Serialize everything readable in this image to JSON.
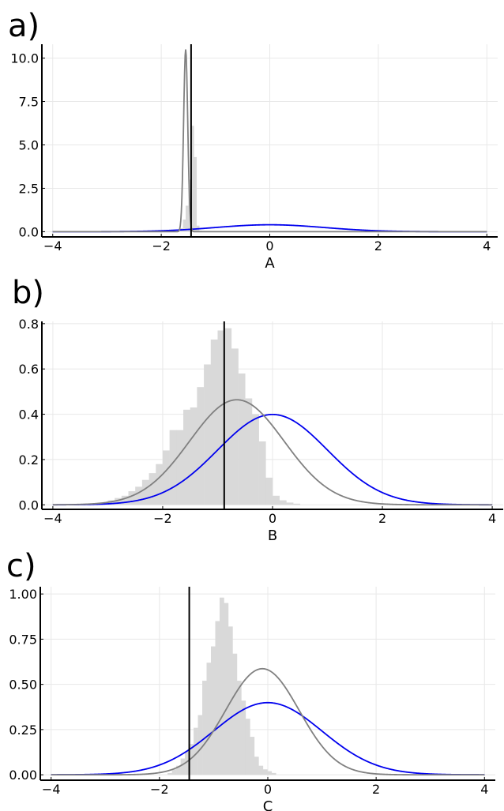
{
  "chart_data": [
    {
      "type": "line",
      "panel_label": "a)",
      "xlabel": "A",
      "ylabel": "",
      "xlim": [
        -4.2,
        4.2
      ],
      "ylim": [
        -0.3,
        10.8
      ],
      "x_ticks": [
        -4,
        -2,
        0,
        2,
        4
      ],
      "x_tick_labels": [
        "−4",
        "−2",
        "0",
        "2",
        "4"
      ],
      "y_ticks": [
        0,
        2.5,
        5,
        7.5,
        10
      ],
      "y_tick_labels": [
        "0.0",
        "2.5",
        "5.0",
        "7.5",
        "10.0"
      ],
      "grid": true,
      "legend": "none",
      "vline": -1.45,
      "histogram": {
        "bin_width": 0.05,
        "bins": [
          {
            "x": -1.65,
            "h": 0.2
          },
          {
            "x": -1.6,
            "h": 0.7
          },
          {
            "x": -1.55,
            "h": 1.5
          },
          {
            "x": -1.5,
            "h": 3.0
          },
          {
            "x": -1.45,
            "h": 6.1
          },
          {
            "x": -1.4,
            "h": 4.3
          },
          {
            "x": -1.35,
            "h": 0.35
          },
          {
            "x": -1.3,
            "h": 0.05
          }
        ]
      },
      "series": [
        {
          "kind": "normal",
          "mean": 0,
          "sd": 1,
          "color": "#0000ee"
        },
        {
          "kind": "normal",
          "mean": -1.55,
          "sd": 0.038,
          "color": "#808080"
        }
      ]
    },
    {
      "type": "line",
      "panel_label": "b)",
      "xlabel": "B",
      "ylabel": "",
      "xlim": [
        -4.2,
        4.2
      ],
      "ylim": [
        -0.02,
        0.81
      ],
      "x_ticks": [
        -4,
        -2,
        0,
        2,
        4
      ],
      "x_tick_labels": [
        "−4",
        "−2",
        "0",
        "2",
        "4"
      ],
      "y_ticks": [
        0,
        0.2,
        0.4,
        0.6,
        0.8
      ],
      "y_tick_labels": [
        "0.0",
        "0.2",
        "0.4",
        "0.6",
        "0.8"
      ],
      "grid": true,
      "legend": "none",
      "vline": -0.88,
      "histogram": {
        "bin_width": 0.125,
        "bins": [
          {
            "x": -3.25,
            "h": 0.005
          },
          {
            "x": -3.125,
            "h": 0.01
          },
          {
            "x": -3.0,
            "h": 0.02
          },
          {
            "x": -2.875,
            "h": 0.03
          },
          {
            "x": -2.75,
            "h": 0.04
          },
          {
            "x": -2.625,
            "h": 0.06
          },
          {
            "x": -2.5,
            "h": 0.08
          },
          {
            "x": -2.375,
            "h": 0.11
          },
          {
            "x": -2.25,
            "h": 0.14
          },
          {
            "x": -2.125,
            "h": 0.18
          },
          {
            "x": -2.0,
            "h": 0.24
          },
          {
            "x": -1.875,
            "h": 0.33
          },
          {
            "x": -1.75,
            "h": 0.33
          },
          {
            "x": -1.625,
            "h": 0.42
          },
          {
            "x": -1.5,
            "h": 0.43
          },
          {
            "x": -1.375,
            "h": 0.52
          },
          {
            "x": -1.25,
            "h": 0.62
          },
          {
            "x": -1.125,
            "h": 0.73
          },
          {
            "x": -1.0,
            "h": 0.77
          },
          {
            "x": -0.875,
            "h": 0.78
          },
          {
            "x": -0.75,
            "h": 0.69
          },
          {
            "x": -0.625,
            "h": 0.58
          },
          {
            "x": -0.5,
            "h": 0.47
          },
          {
            "x": -0.375,
            "h": 0.4
          },
          {
            "x": -0.25,
            "h": 0.28
          },
          {
            "x": -0.125,
            "h": 0.12
          },
          {
            "x": 0.0,
            "h": 0.04
          },
          {
            "x": 0.125,
            "h": 0.02
          },
          {
            "x": 0.25,
            "h": 0.01
          },
          {
            "x": 0.375,
            "h": 0.005
          }
        ]
      },
      "series": [
        {
          "kind": "normal",
          "mean": 0,
          "sd": 1,
          "color": "#0000ee"
        },
        {
          "kind": "normal",
          "mean": -0.65,
          "sd": 0.86,
          "color": "#808080"
        }
      ]
    },
    {
      "type": "line",
      "panel_label": "c)",
      "xlabel": "C",
      "ylabel": "",
      "xlim": [
        -4.2,
        4.2
      ],
      "ylim": [
        -0.03,
        1.04
      ],
      "x_ticks": [
        -4,
        -2,
        0,
        2,
        4
      ],
      "x_tick_labels": [
        "−4",
        "−2",
        "0",
        "2",
        "4"
      ],
      "y_ticks": [
        0,
        0.25,
        0.5,
        0.75,
        1.0
      ],
      "y_tick_labels": [
        "0.00",
        "0.25",
        "0.50",
        "0.75",
        "1.00"
      ],
      "grid": true,
      "legend": "none",
      "vline": -1.45,
      "histogram": {
        "bin_width": 0.08,
        "bins": [
          {
            "x": -1.85,
            "h": 0.01
          },
          {
            "x": -1.77,
            "h": 0.03
          },
          {
            "x": -1.69,
            "h": 0.05
          },
          {
            "x": -1.61,
            "h": 0.09
          },
          {
            "x": -1.53,
            "h": 0.13
          },
          {
            "x": -1.45,
            "h": 0.17
          },
          {
            "x": -1.37,
            "h": 0.26
          },
          {
            "x": -1.29,
            "h": 0.33
          },
          {
            "x": -1.21,
            "h": 0.52
          },
          {
            "x": -1.13,
            "h": 0.62
          },
          {
            "x": -1.05,
            "h": 0.71
          },
          {
            "x": -0.97,
            "h": 0.85
          },
          {
            "x": -0.89,
            "h": 0.98
          },
          {
            "x": -0.81,
            "h": 0.95
          },
          {
            "x": -0.73,
            "h": 0.82
          },
          {
            "x": -0.65,
            "h": 0.67
          },
          {
            "x": -0.57,
            "h": 0.52
          },
          {
            "x": -0.49,
            "h": 0.41
          },
          {
            "x": -0.41,
            "h": 0.31
          },
          {
            "x": -0.33,
            "h": 0.21
          },
          {
            "x": -0.25,
            "h": 0.1
          },
          {
            "x": -0.17,
            "h": 0.05
          },
          {
            "x": -0.09,
            "h": 0.03
          },
          {
            "x": -0.01,
            "h": 0.02
          },
          {
            "x": 0.07,
            "h": 0.01
          }
        ]
      },
      "series": [
        {
          "kind": "normal",
          "mean": 0,
          "sd": 1,
          "color": "#0000ee"
        },
        {
          "kind": "normal",
          "mean": -0.1,
          "sd": 0.68,
          "color": "#808080"
        }
      ]
    }
  ],
  "colors": {
    "histogram": "#d9d9d9",
    "prior": "#0000ee",
    "posterior": "#808080",
    "vline": "#000000",
    "grid": "#e8e8e8",
    "axis": "#000000"
  }
}
